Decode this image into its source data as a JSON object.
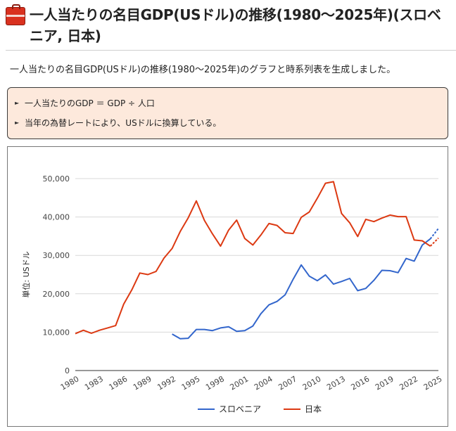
{
  "header": {
    "icon": "toolbox-icon",
    "title": "一人当たりの名目GDP(USドル)の推移(1980～2025年)(スロベニア, 日本)"
  },
  "intro": "一人当たりの名目GDP(USドル)の推移(1980～2025年)のグラフと時系列表を生成しました。",
  "notes": [
    "一人当たりのGDP ＝ GDP ÷ 人口",
    "当年の為替レートにより、USドルに換算している。"
  ],
  "colors": {
    "slovenia": "#3366cc",
    "japan": "#dc3912",
    "note_bg": "#fde9dc",
    "grid": "#d8d8d8"
  },
  "chart_data": {
    "type": "line",
    "ylabel": "単位: USドル",
    "xlabel": "",
    "ylim": [
      0,
      50000
    ],
    "yticks": [
      0,
      10000,
      20000,
      30000,
      40000,
      50000
    ],
    "ytick_labels": [
      "0",
      "10,000",
      "20,000",
      "30,000",
      "40,000",
      "50,000"
    ],
    "xlim": [
      1980,
      2025
    ],
    "xticks": [
      1980,
      1983,
      1986,
      1989,
      1992,
      1995,
      1998,
      2001,
      2004,
      2007,
      2010,
      2013,
      2016,
      2019,
      2022,
      2025
    ],
    "xtick_labels": [
      "1980",
      "1983",
      "1986",
      "1989",
      "1992",
      "1995",
      "1998",
      "2001",
      "2004",
      "2007",
      "2010",
      "2013",
      "2016",
      "2019",
      "2022",
      "2025"
    ],
    "grid": true,
    "legend_position": "bottom",
    "forecast_from": 2024,
    "series": [
      {
        "name": "スロベニア",
        "color": "#3366cc",
        "x": [
          1992,
          1993,
          1994,
          1995,
          1996,
          1997,
          1998,
          1999,
          2000,
          2001,
          2002,
          2003,
          2004,
          2005,
          2006,
          2007,
          2008,
          2009,
          2010,
          2011,
          2012,
          2013,
          2014,
          2015,
          2016,
          2017,
          2018,
          2019,
          2020,
          2021,
          2022,
          2023,
          2024,
          2025
        ],
        "values": [
          9500,
          8300,
          8400,
          10700,
          10700,
          10400,
          11100,
          11400,
          10200,
          10400,
          11600,
          14800,
          17100,
          18000,
          19700,
          23800,
          27500,
          24600,
          23400,
          24900,
          22500,
          23200,
          24000,
          20800,
          21400,
          23500,
          26100,
          26000,
          25500,
          29200,
          28500,
          32700,
          34300,
          37000
        ]
      },
      {
        "name": "日本",
        "color": "#dc3912",
        "x": [
          1980,
          1981,
          1982,
          1983,
          1984,
          1985,
          1986,
          1987,
          1988,
          1989,
          1990,
          1991,
          1992,
          1993,
          1994,
          1995,
          1996,
          1997,
          1998,
          1999,
          2000,
          2001,
          2002,
          2003,
          2004,
          2005,
          2006,
          2007,
          2008,
          2009,
          2010,
          2011,
          2012,
          2013,
          2014,
          2015,
          2016,
          2017,
          2018,
          2019,
          2020,
          2021,
          2022,
          2023,
          2024,
          2025
        ],
        "values": [
          9600,
          10500,
          9700,
          10500,
          11100,
          11700,
          17300,
          21000,
          25400,
          25000,
          25800,
          29300,
          31800,
          36200,
          39800,
          44200,
          39100,
          35600,
          32400,
          36600,
          39200,
          34400,
          32700,
          35300,
          38300,
          37800,
          35900,
          35700,
          39900,
          41300,
          44900,
          48800,
          49200,
          40900,
          38500,
          34900,
          39400,
          38800,
          39700,
          40500,
          40100,
          40100,
          34000,
          33800,
          32400,
          34500
        ]
      }
    ]
  }
}
